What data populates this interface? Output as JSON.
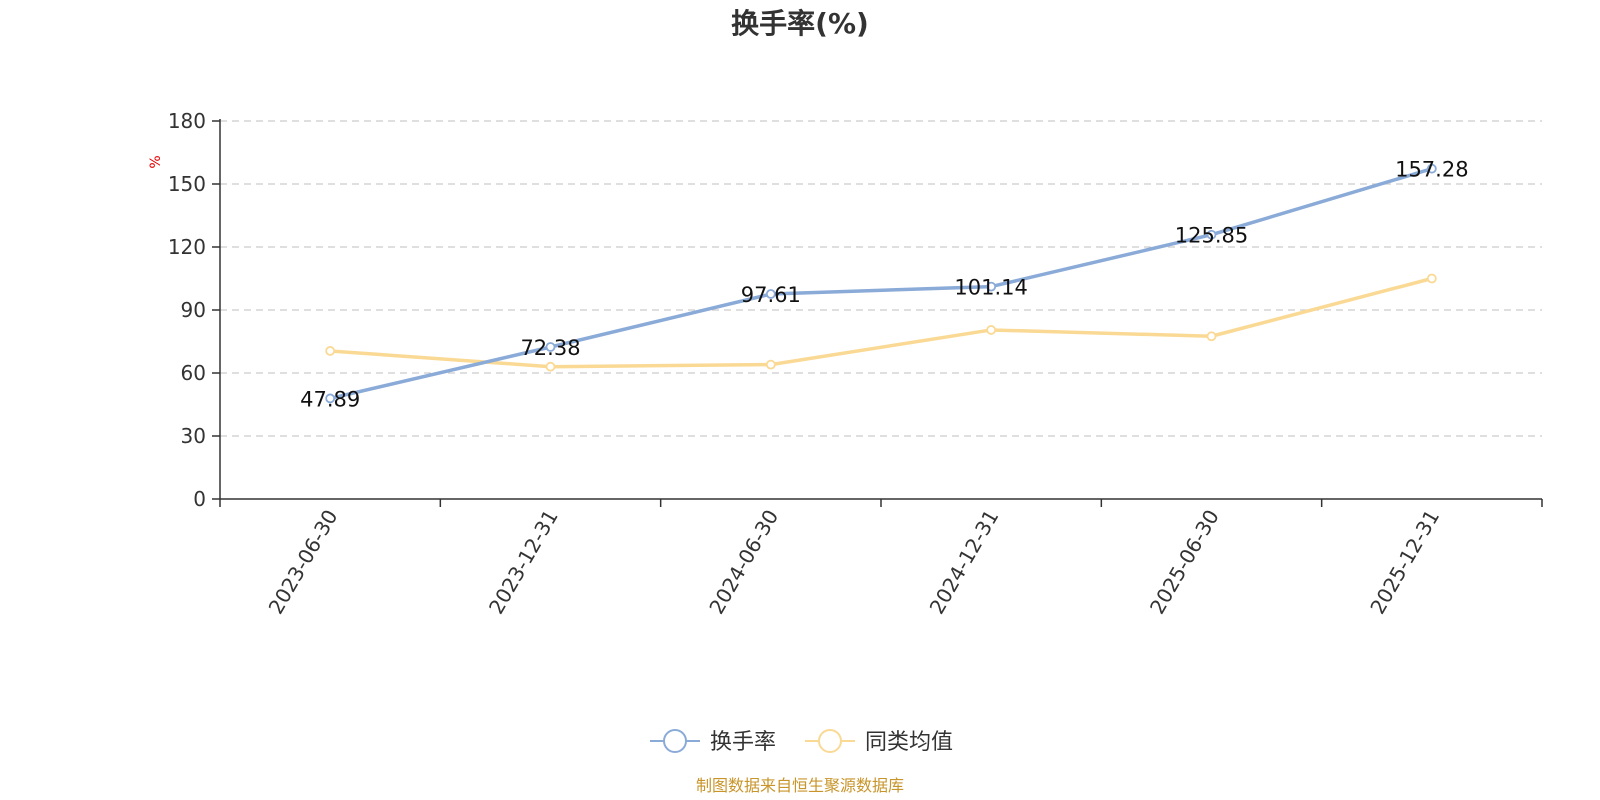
{
  "chart_data": {
    "type": "line",
    "title": "换手率(%)",
    "ylabel": "%",
    "categories": [
      "2023-06-30",
      "2023-12-31",
      "2024-06-30",
      "2024-12-31",
      "2025-06-30",
      "2025-12-31"
    ],
    "ylim": [
      0,
      180
    ],
    "yticks": [
      0,
      30,
      60,
      90,
      120,
      150,
      180
    ],
    "grid": true,
    "legend_position": "bottom",
    "series": [
      {
        "name": "换手率",
        "color": "#8aaad8",
        "values": [
          47.89,
          72.38,
          97.61,
          101.14,
          125.85,
          157.28
        ],
        "labels": [
          "47.89",
          "72.38",
          "97.61",
          "101.14",
          "125.85",
          "157.28"
        ]
      },
      {
        "name": "同类均值",
        "color": "#fad994",
        "values": [
          70.5,
          63.0,
          64.0,
          80.5,
          77.5,
          105.0
        ]
      }
    ],
    "source": "制图数据来自恒生聚源数据库"
  }
}
